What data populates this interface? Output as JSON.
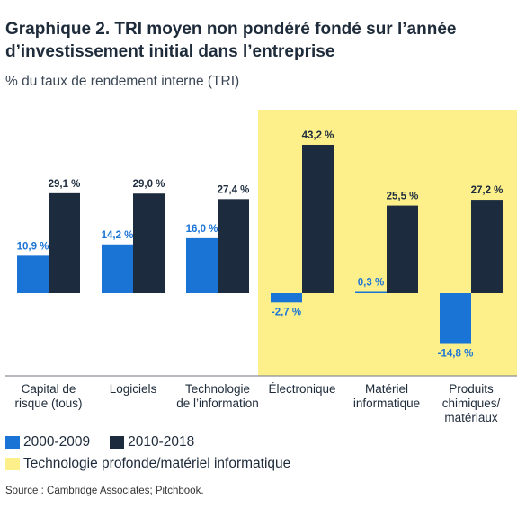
{
  "title_line1": "Graphique 2. TRI moyen non pondéré fondé sur l’année",
  "title_line2": "d’investissement initial dans l’entreprise",
  "subtitle": "% du taux de rendement interne (TRI)",
  "source": "Source : Cambridge Associates; Pitchbook.",
  "colors": {
    "series1": "#1a74d6",
    "series2": "#1c2b3d",
    "highlight": "#fdf08a",
    "axis": "#8a8f96",
    "label1": "#1a74d6",
    "label2": "#1c2b3d"
  },
  "legend": {
    "series1": "2000-2009",
    "series2": "2010-2018",
    "highlight": "Technologie profonde/matériel informatique"
  },
  "chart_data": {
    "type": "bar",
    "categories": [
      [
        "Capital de",
        "risque (tous)"
      ],
      [
        "Logiciels"
      ],
      [
        "Technologie",
        "de l’information"
      ],
      [
        "Électronique"
      ],
      [
        "Matériel",
        "informatique"
      ],
      [
        "Produits",
        "chimiques/",
        "matériaux"
      ]
    ],
    "series": [
      {
        "name": "2000-2009",
        "values": [
          10.9,
          14.2,
          16.0,
          -2.7,
          0.3,
          -14.8
        ],
        "labels": [
          "10,9 %",
          "14,2 %",
          "16,0 %",
          "-2,7 %",
          "0,3 %",
          "-14,8 %"
        ]
      },
      {
        "name": "2010-2018",
        "values": [
          29.1,
          29.0,
          27.4,
          43.2,
          25.5,
          27.2
        ],
        "labels": [
          "29,1 %",
          "29,0 %",
          "27,4 %",
          "43,2 %",
          "25,5 %",
          "27,2 %"
        ]
      }
    ],
    "highlighted_categories": [
      3,
      4,
      5
    ],
    "ylim": [
      -20,
      45
    ],
    "grid": false,
    "legend_position": "bottom-left"
  }
}
